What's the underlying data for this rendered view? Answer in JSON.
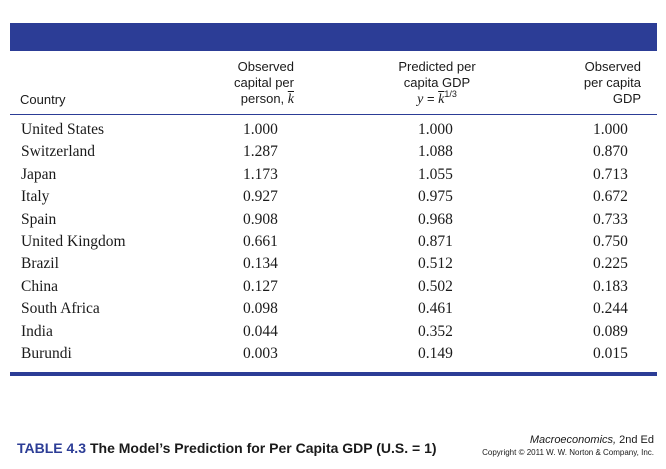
{
  "table": {
    "headers": {
      "country": "Country",
      "capital": {
        "line1": "Observed",
        "line2": "capital per",
        "line3_prefix": "person, ",
        "line3_var": "k"
      },
      "predicted": {
        "line1": "Predicted per",
        "line2": "capita GDP",
        "line3_y": "y",
        "line3_eq": " = ",
        "line3_k": "k",
        "line3_exp": "1/3"
      },
      "observed": {
        "line1": "Observed",
        "line2": "per capita",
        "line3": "GDP"
      }
    },
    "rows": [
      {
        "country": "United States",
        "capital": "1.000",
        "predicted": "1.000",
        "observed": "1.000"
      },
      {
        "country": "Switzerland",
        "capital": "1.287",
        "predicted": "1.088",
        "observed": "0.870"
      },
      {
        "country": "Japan",
        "capital": "1.173",
        "predicted": "1.055",
        "observed": "0.713"
      },
      {
        "country": "Italy",
        "capital": "0.927",
        "predicted": "0.975",
        "observed": "0.672"
      },
      {
        "country": "Spain",
        "capital": "0.908",
        "predicted": "0.968",
        "observed": "0.733"
      },
      {
        "country": "United Kingdom",
        "capital": "0.661",
        "predicted": "0.871",
        "observed": "0.750"
      },
      {
        "country": "Brazil",
        "capital": "0.134",
        "predicted": "0.512",
        "observed": "0.225"
      },
      {
        "country": "China",
        "capital": "0.127",
        "predicted": "0.502",
        "observed": "0.183"
      },
      {
        "country": "South Africa",
        "capital": "0.098",
        "predicted": "0.461",
        "observed": "0.244"
      },
      {
        "country": "India",
        "capital": "0.044",
        "predicted": "0.352",
        "observed": "0.089"
      },
      {
        "country": "Burundi",
        "capital": "0.003",
        "predicted": "0.149",
        "observed": "0.015"
      }
    ]
  },
  "caption": {
    "number": "TABLE 4.3",
    "text": "The Model’s Prediction for Per Capita GDP (U.S. = 1)"
  },
  "credit": {
    "book_title": "Macroeconomics,",
    "edition": " 2nd Ed",
    "copyright": "Copyright © 2011 W. W. Norton & Company, Inc."
  },
  "colors": {
    "accent": "#2c3d96"
  }
}
